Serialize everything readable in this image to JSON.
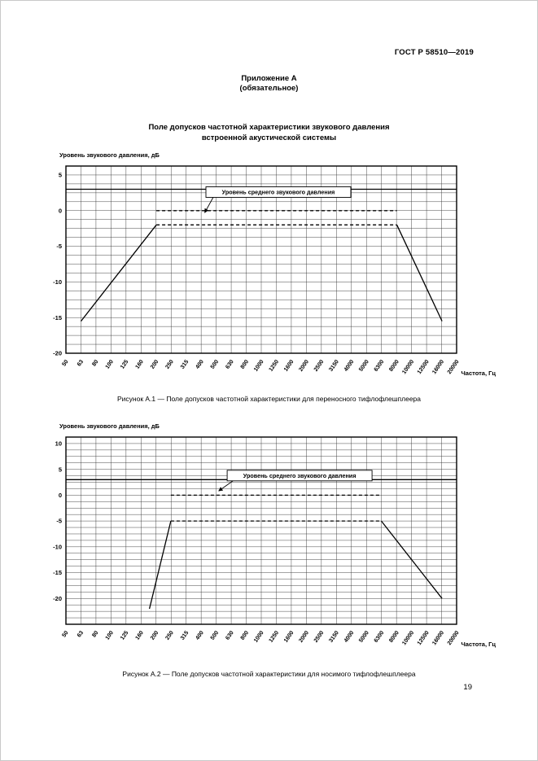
{
  "page": {
    "header_right": "ГОСТ Р 58510—2019",
    "appendix_title": "Приложение А",
    "appendix_subtitle": "(обязательное)",
    "section_title_line1": "Поле допусков частотной характеристики звукового давления",
    "section_title_line2": "встроенной акустической системы",
    "page_number": "19"
  },
  "figures": [
    {
      "caption": "Рисунок А.1 — Поле допусков частотной характеристики для переносного тифлофлешплеера"
    },
    {
      "caption": "Рисунок А.2 — Поле допусков частотной характеристики для носимого тифлофлешплеера"
    }
  ],
  "chart_data": [
    {
      "type": "line",
      "title": "Поле допусков частотной характеристики для переносного тифлофлешплеера",
      "ylabel": "Уровень звукового давления, дБ",
      "xlabel": "Частота, Гц",
      "x_ticks": [
        "50",
        "63",
        "80",
        "100",
        "125",
        "160",
        "200",
        "250",
        "315",
        "400",
        "500",
        "630",
        "800",
        "1000",
        "1250",
        "1600",
        "2000",
        "2500",
        "3150",
        "4000",
        "5000",
        "6300",
        "8000",
        "10000",
        "12500",
        "16000",
        "20000"
      ],
      "xlim_hz": [
        50,
        20000
      ],
      "y_ticks": [
        5,
        0,
        -5,
        -10,
        -15,
        -20
      ],
      "ylim": [
        -20,
        6.25
      ],
      "y_minor_step": 1.25,
      "legend": "none",
      "annotation": {
        "text": "Уровень среднего звукового давления",
        "cx_hz": 1300,
        "cy_db": 2.6,
        "arrow_to": [
          420,
          -0.3
        ]
      },
      "series": [
        {
          "name": "upper-tolerance-limit",
          "style": "solid",
          "points": [
            [
              50,
              3
            ],
            [
              20000,
              3
            ]
          ]
        },
        {
          "name": "mean-sound-pressure-level",
          "style": "dashed",
          "points": [
            [
              200,
              0
            ],
            [
              8000,
              0
            ]
          ]
        },
        {
          "name": "lower-limit-left-slope",
          "style": "solid",
          "points": [
            [
              63,
              -15.5
            ],
            [
              200,
              -2
            ]
          ]
        },
        {
          "name": "lower-limit-mid",
          "style": "dashed",
          "points": [
            [
              200,
              -2
            ],
            [
              8000,
              -2
            ]
          ]
        },
        {
          "name": "lower-limit-right-slope",
          "style": "solid",
          "points": [
            [
              8000,
              -2
            ],
            [
              16000,
              -15.5
            ]
          ]
        }
      ]
    },
    {
      "type": "line",
      "title": "Поле допусков частотной характеристики для носимого тифлофлешплеера",
      "ylabel": "Уровень звукового давления, дБ",
      "xlabel": "Частота, Гц",
      "x_ticks": [
        "50",
        "63",
        "80",
        "100",
        "125",
        "160",
        "200",
        "250",
        "315",
        "400",
        "500",
        "630",
        "800",
        "1000",
        "1250",
        "1600",
        "2000",
        "2500",
        "3150",
        "4000",
        "5000",
        "6300",
        "8000",
        "10000",
        "12500",
        "16000",
        "20000"
      ],
      "xlim_hz": [
        50,
        20000
      ],
      "y_ticks": [
        10,
        5,
        0,
        -5,
        -10,
        -15,
        -20
      ],
      "ylim": [
        -25,
        11.25
      ],
      "y_minor_step": 1.25,
      "legend": "none",
      "annotation": {
        "text": "Уровень среднего звукового давления",
        "cx_hz": 1800,
        "cy_db": 3.8,
        "arrow_to": [
          520,
          0.8
        ]
      },
      "series": [
        {
          "name": "upper-tolerance-limit",
          "style": "solid",
          "points": [
            [
              50,
              3
            ],
            [
              20000,
              3
            ]
          ]
        },
        {
          "name": "mean-sound-pressure-level",
          "style": "dashed",
          "points": [
            [
              250,
              0
            ],
            [
              6300,
              0
            ]
          ]
        },
        {
          "name": "lower-limit-left-slope",
          "style": "solid",
          "points": [
            [
              180,
              -22
            ],
            [
              250,
              -5
            ]
          ]
        },
        {
          "name": "lower-limit-mid",
          "style": "dashed",
          "points": [
            [
              250,
              -5
            ],
            [
              6300,
              -5
            ]
          ]
        },
        {
          "name": "lower-limit-right-slope",
          "style": "solid",
          "points": [
            [
              6300,
              -5
            ],
            [
              16000,
              -20
            ]
          ]
        }
      ]
    }
  ]
}
